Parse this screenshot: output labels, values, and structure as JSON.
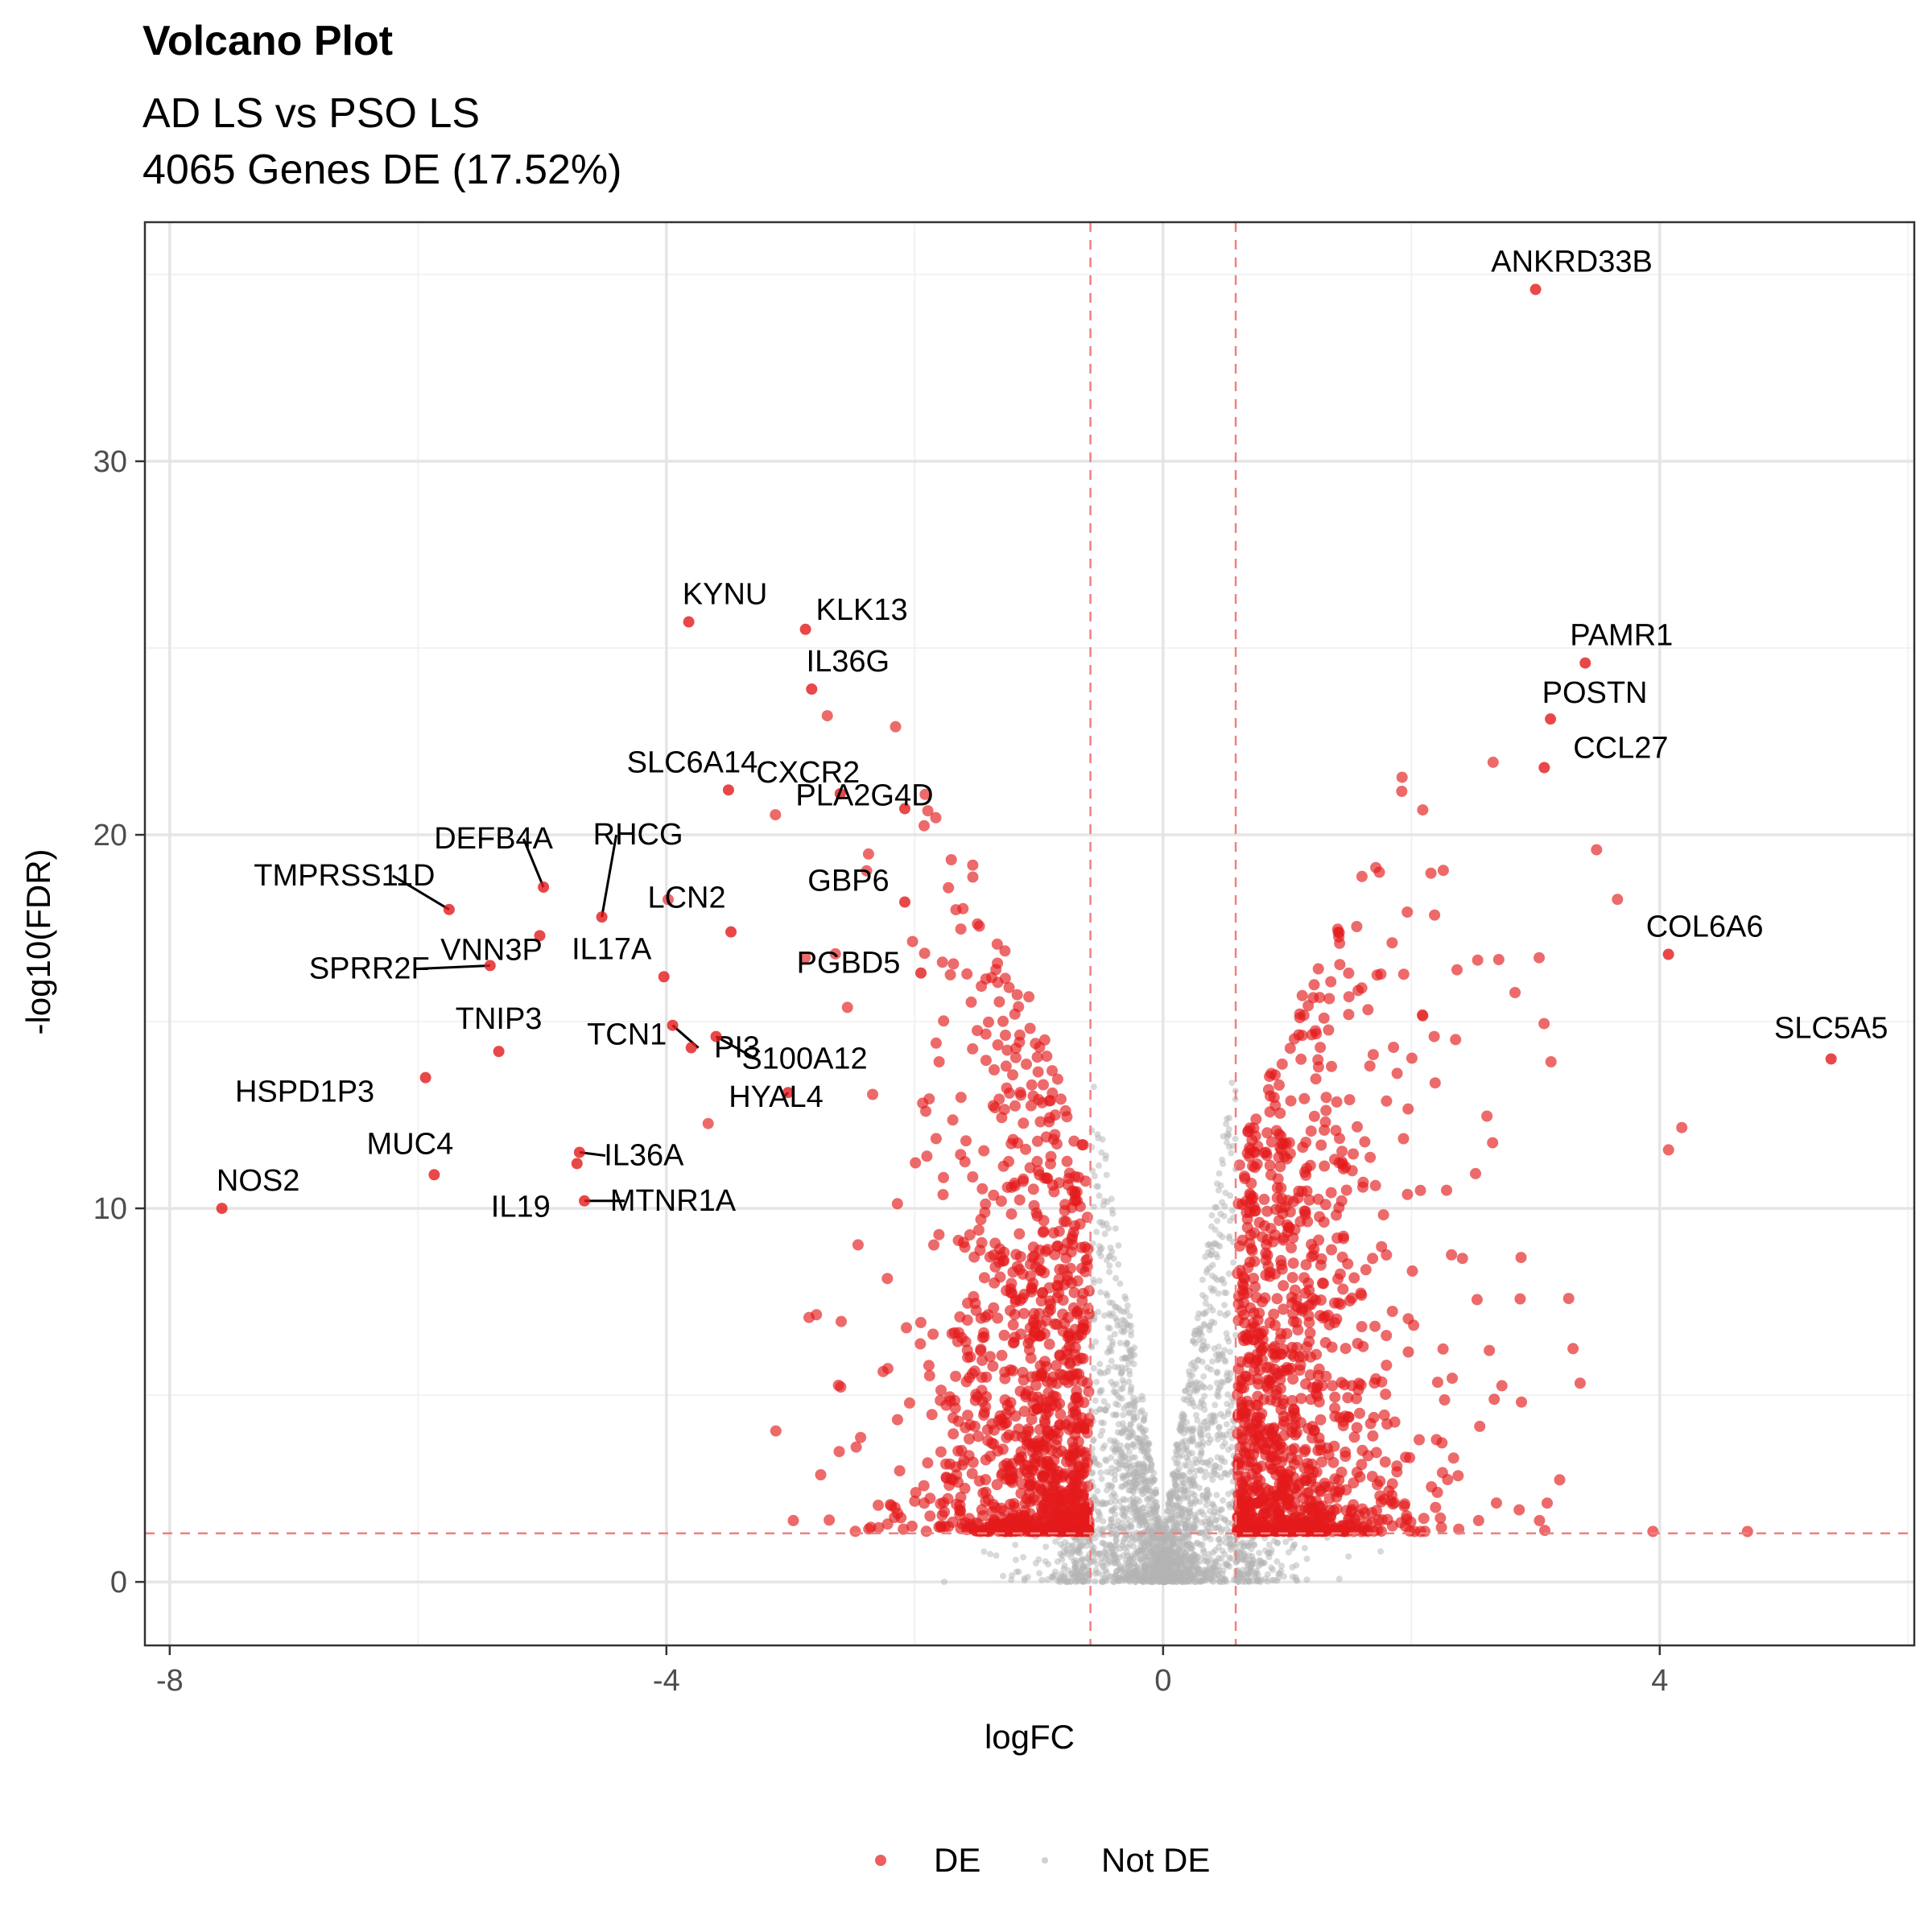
{
  "chart_data": {
    "type": "scatter",
    "title": "Volcano Plot",
    "subtitle_lines": [
      "AD LS vs PSO LS",
      "4065 Genes DE (17.52%)"
    ],
    "xlabel": "logFC",
    "ylabel": "-log10(FDR)",
    "xlim": [
      -8.2,
      6.05
    ],
    "ylim": [
      -1.7,
      36.4
    ],
    "x_ticks": [
      -8,
      -4,
      0,
      4
    ],
    "x_tick_labels": [
      "-8",
      "-4",
      "0",
      "4"
    ],
    "y_ticks": [
      0,
      10,
      20,
      30
    ],
    "y_tick_labels": [
      "0",
      "10",
      "20",
      "30"
    ],
    "grid": true,
    "thresholds": {
      "logFC": [
        -0.585,
        0.585
      ],
      "neg_log10_fdr": 1.3
    },
    "colors": {
      "de": "#e41a1c",
      "not_de": "#b3b3b3",
      "threshold_line": "#f08080",
      "panel_border": "#333333",
      "grid_major": "#e5e5e5",
      "grid_minor": "#f2f2f2"
    },
    "legend": {
      "position": "bottom",
      "entries": [
        "DE",
        "Not DE"
      ]
    },
    "series": [
      {
        "name": "DE",
        "note": "4065 significant genes; the dense unlabeled cloud is summarized, labeled genes listed below"
      },
      {
        "name": "Not DE"
      }
    ],
    "labeled_points": [
      {
        "gene": "ANKRD33B",
        "x": 3.0,
        "y": 34.6
      },
      {
        "gene": "KYNU",
        "x": -3.82,
        "y": 25.7
      },
      {
        "gene": "KLK13",
        "x": -2.88,
        "y": 25.5
      },
      {
        "gene": "PAMR1",
        "x": 3.4,
        "y": 24.6
      },
      {
        "gene": "IL36G",
        "x": -2.83,
        "y": 23.9
      },
      {
        "gene": "POSTN",
        "x": 3.12,
        "y": 23.1
      },
      {
        "gene": "CCL27",
        "x": 3.07,
        "y": 21.8
      },
      {
        "gene": "SLC6A14",
        "x": -3.5,
        "y": 21.2
      },
      {
        "gene": "CXCR2",
        "x": -2.6,
        "y": 21.1
      },
      {
        "gene": "DEFB4A",
        "x": -4.99,
        "y": 18.6
      },
      {
        "gene": "PLA2G4D",
        "x": -2.08,
        "y": 20.7
      },
      {
        "gene": "RHCG",
        "x": -4.52,
        "y": 17.8
      },
      {
        "gene": "TMPRSS11D",
        "x": -5.75,
        "y": 18.0
      },
      {
        "gene": "VNN3P",
        "x": -5.02,
        "y": 17.3
      },
      {
        "gene": "LCN2",
        "x": -3.48,
        "y": 17.4
      },
      {
        "gene": "GBP6",
        "x": -2.08,
        "y": 18.2
      },
      {
        "gene": "COL6A6",
        "x": 4.07,
        "y": 16.8
      },
      {
        "gene": "SPRR2F",
        "x": -5.42,
        "y": 16.5
      },
      {
        "gene": "IL17A",
        "x": -4.02,
        "y": 16.2
      },
      {
        "gene": "PGBD5",
        "x": -1.95,
        "y": 16.3
      },
      {
        "gene": "PI3",
        "x": -3.95,
        "y": 14.9
      },
      {
        "gene": "TNIP3",
        "x": -5.35,
        "y": 14.2
      },
      {
        "gene": "S100A12",
        "x": -3.6,
        "y": 14.6
      },
      {
        "gene": "SLC5A5",
        "x": 5.38,
        "y": 14.0
      },
      {
        "gene": "HSPD1P3",
        "x": -5.94,
        "y": 13.5
      },
      {
        "gene": "TCN1",
        "x": -3.8,
        "y": 14.3
      },
      {
        "gene": "HYAL4",
        "x": -3.02,
        "y": 13.1
      },
      {
        "gene": "IL36A",
        "x": -4.7,
        "y": 11.5
      },
      {
        "gene": "MUC4",
        "x": -5.87,
        "y": 10.9
      },
      {
        "gene": "IL19",
        "x": -4.72,
        "y": 11.2
      },
      {
        "gene": "MTNR1A",
        "x": -4.66,
        "y": 10.2
      },
      {
        "gene": "NOS2",
        "x": -7.58,
        "y": 10.0
      }
    ]
  }
}
